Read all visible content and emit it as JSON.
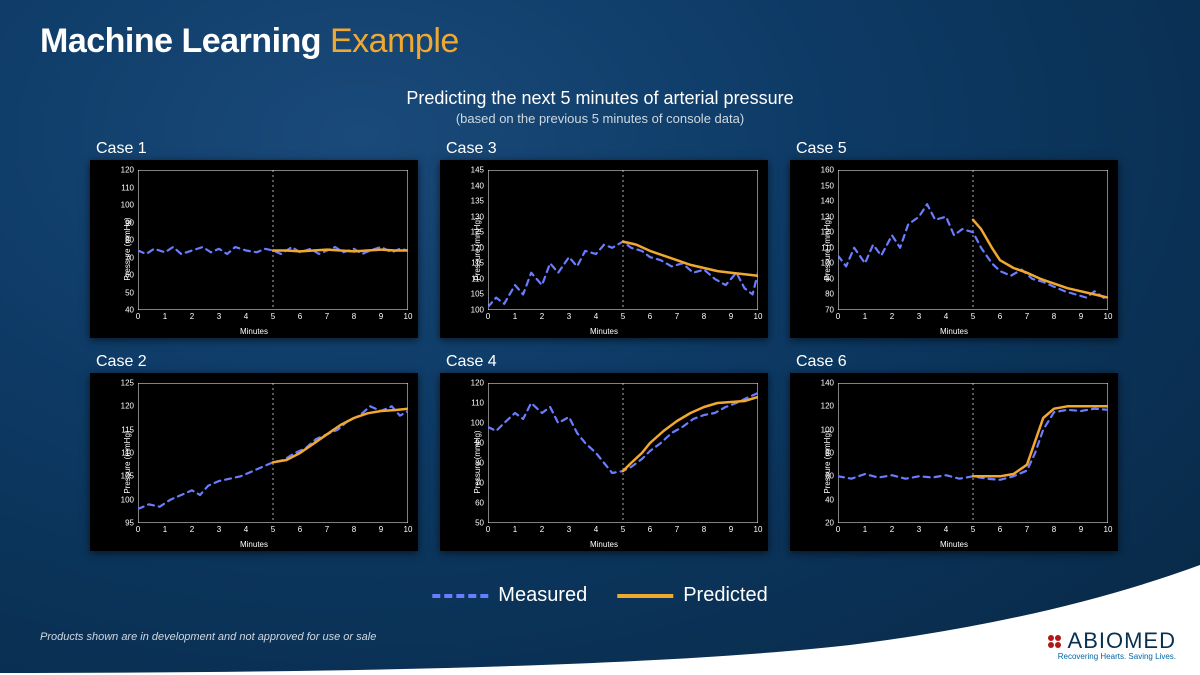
{
  "title": {
    "part1": "Machine Learning ",
    "part2": "Example"
  },
  "subtitle": {
    "line1": "Predicting the next 5 minutes of arterial pressure",
    "line2": "(based on the previous 5 minutes of console data)"
  },
  "legend": {
    "measured": {
      "label": "Measured",
      "color": "#6a7cff",
      "dash": "6,5",
      "width": 2.2
    },
    "predicted": {
      "label": "Predicted",
      "color": "#f0a830",
      "dash": "none",
      "width": 2.5
    }
  },
  "axis_labels": {
    "y": "Pressure (mmHg)",
    "x": "Minutes"
  },
  "common": {
    "xlim": [
      0,
      10
    ],
    "xtick_step": 1,
    "vline_x": 5,
    "tick_fontsize": 8,
    "background_color": "#000000",
    "frame_color": "#ffffff",
    "vline_color": "#dddddd",
    "vline_dash": "2,3"
  },
  "panels_order": [
    [
      "case1",
      "case3",
      "case5"
    ],
    [
      "case2",
      "case4",
      "case6"
    ]
  ],
  "panels": {
    "case1": {
      "label": "Case 1",
      "ylim": [
        40,
        120
      ],
      "ytick_step": 10,
      "measured": [
        [
          0,
          74
        ],
        [
          0.3,
          72
        ],
        [
          0.6,
          75
        ],
        [
          1,
          73
        ],
        [
          1.3,
          76
        ],
        [
          1.6,
          72
        ],
        [
          2,
          74
        ],
        [
          2.4,
          76
        ],
        [
          2.7,
          73
        ],
        [
          3,
          75
        ],
        [
          3.3,
          72
        ],
        [
          3.6,
          76
        ],
        [
          4,
          74
        ],
        [
          4.4,
          73
        ],
        [
          4.7,
          75
        ],
        [
          5,
          74
        ],
        [
          5.3,
          72
        ],
        [
          5.7,
          76
        ],
        [
          6,
          73
        ],
        [
          6.4,
          75
        ],
        [
          6.7,
          72
        ],
        [
          7,
          74
        ],
        [
          7.3,
          76
        ],
        [
          7.6,
          73
        ],
        [
          8,
          75
        ],
        [
          8.3,
          72
        ],
        [
          8.6,
          74
        ],
        [
          9,
          76
        ],
        [
          9.4,
          73
        ],
        [
          9.7,
          75
        ],
        [
          10,
          74
        ]
      ],
      "predicted": [
        [
          5,
          74
        ],
        [
          5.5,
          74
        ],
        [
          6,
          73.5
        ],
        [
          6.5,
          74
        ],
        [
          7,
          74.5
        ],
        [
          7.5,
          74
        ],
        [
          8,
          73.5
        ],
        [
          8.5,
          74
        ],
        [
          9,
          74.5
        ],
        [
          9.5,
          74
        ],
        [
          10,
          74
        ]
      ]
    },
    "case2": {
      "label": "Case 2",
      "ylim": [
        95,
        125
      ],
      "ytick_step": 5,
      "measured": [
        [
          0,
          98
        ],
        [
          0.4,
          99
        ],
        [
          0.8,
          98.5
        ],
        [
          1.2,
          100
        ],
        [
          1.6,
          101
        ],
        [
          2,
          102
        ],
        [
          2.3,
          101
        ],
        [
          2.6,
          103
        ],
        [
          3,
          104
        ],
        [
          3.4,
          104.5
        ],
        [
          3.8,
          105
        ],
        [
          4.2,
          106
        ],
        [
          4.6,
          107
        ],
        [
          5,
          108
        ],
        [
          5.4,
          108.5
        ],
        [
          5.8,
          110
        ],
        [
          6.2,
          111
        ],
        [
          6.6,
          113
        ],
        [
          7,
          114
        ],
        [
          7.4,
          115
        ],
        [
          7.8,
          117
        ],
        [
          8.2,
          118
        ],
        [
          8.6,
          120
        ],
        [
          9,
          119
        ],
        [
          9.4,
          120
        ],
        [
          9.7,
          118
        ],
        [
          10,
          119
        ]
      ],
      "predicted": [
        [
          5,
          108
        ],
        [
          5.5,
          108.5
        ],
        [
          6,
          110
        ],
        [
          6.5,
          112
        ],
        [
          7,
          114
        ],
        [
          7.5,
          116
        ],
        [
          8,
          117.5
        ],
        [
          8.5,
          118.5
        ],
        [
          9,
          119
        ],
        [
          9.5,
          119.2
        ],
        [
          10,
          119.5
        ]
      ]
    },
    "case3": {
      "label": "Case 3",
      "ylim": [
        100,
        145
      ],
      "ytick_step": 5,
      "measured": [
        [
          0,
          101
        ],
        [
          0.3,
          104
        ],
        [
          0.6,
          102
        ],
        [
          1,
          108
        ],
        [
          1.3,
          105
        ],
        [
          1.6,
          112
        ],
        [
          2,
          108
        ],
        [
          2.3,
          115
        ],
        [
          2.6,
          112
        ],
        [
          3,
          117
        ],
        [
          3.3,
          114
        ],
        [
          3.6,
          119
        ],
        [
          4,
          118
        ],
        [
          4.3,
          121
        ],
        [
          4.6,
          120
        ],
        [
          5,
          122
        ],
        [
          5.3,
          120
        ],
        [
          5.7,
          119
        ],
        [
          6,
          117
        ],
        [
          6.4,
          116
        ],
        [
          6.8,
          114
        ],
        [
          7.2,
          115
        ],
        [
          7.6,
          112
        ],
        [
          8,
          113
        ],
        [
          8.4,
          110
        ],
        [
          8.8,
          108
        ],
        [
          9.2,
          112
        ],
        [
          9.5,
          107
        ],
        [
          9.8,
          105
        ],
        [
          10,
          112
        ]
      ],
      "predicted": [
        [
          5,
          122
        ],
        [
          5.5,
          121
        ],
        [
          6,
          119
        ],
        [
          6.5,
          117.5
        ],
        [
          7,
          116
        ],
        [
          7.5,
          114.5
        ],
        [
          8,
          113.5
        ],
        [
          8.5,
          112.5
        ],
        [
          9,
          112
        ],
        [
          9.5,
          111.5
        ],
        [
          10,
          111
        ]
      ]
    },
    "case4": {
      "label": "Case 4",
      "ylim": [
        50,
        120
      ],
      "ytick_step": 10,
      "measured": [
        [
          0,
          98
        ],
        [
          0.3,
          96
        ],
        [
          0.6,
          100
        ],
        [
          1,
          105
        ],
        [
          1.3,
          102
        ],
        [
          1.6,
          110
        ],
        [
          2,
          105
        ],
        [
          2.3,
          108
        ],
        [
          2.6,
          100
        ],
        [
          3,
          103
        ],
        [
          3.3,
          95
        ],
        [
          3.6,
          90
        ],
        [
          4,
          85
        ],
        [
          4.3,
          80
        ],
        [
          4.6,
          75
        ],
        [
          5,
          76
        ],
        [
          5.3,
          78
        ],
        [
          5.7,
          82
        ],
        [
          6,
          86
        ],
        [
          6.4,
          90
        ],
        [
          6.8,
          95
        ],
        [
          7.2,
          98
        ],
        [
          7.6,
          102
        ],
        [
          8,
          104
        ],
        [
          8.4,
          105
        ],
        [
          8.8,
          108
        ],
        [
          9.2,
          110
        ],
        [
          9.5,
          112
        ],
        [
          10,
          115
        ]
      ],
      "predicted": [
        [
          5,
          76
        ],
        [
          5.3,
          80
        ],
        [
          5.7,
          85
        ],
        [
          6,
          90
        ],
        [
          6.5,
          96
        ],
        [
          7,
          101
        ],
        [
          7.5,
          105
        ],
        [
          8,
          108
        ],
        [
          8.5,
          110
        ],
        [
          9,
          110.5
        ],
        [
          9.5,
          111
        ],
        [
          10,
          113
        ]
      ]
    },
    "case5": {
      "label": "Case 5",
      "ylim": [
        70,
        160
      ],
      "ytick_step": 10,
      "measured": [
        [
          0,
          105
        ],
        [
          0.3,
          98
        ],
        [
          0.6,
          110
        ],
        [
          1,
          100
        ],
        [
          1.3,
          112
        ],
        [
          1.6,
          105
        ],
        [
          2,
          118
        ],
        [
          2.3,
          110
        ],
        [
          2.6,
          125
        ],
        [
          3,
          130
        ],
        [
          3.3,
          138
        ],
        [
          3.6,
          128
        ],
        [
          4,
          130
        ],
        [
          4.3,
          118
        ],
        [
          4.6,
          122
        ],
        [
          5,
          120
        ],
        [
          5.3,
          110
        ],
        [
          5.7,
          100
        ],
        [
          6,
          95
        ],
        [
          6.4,
          92
        ],
        [
          6.8,
          96
        ],
        [
          7.2,
          90
        ],
        [
          7.6,
          88
        ],
        [
          8,
          85
        ],
        [
          8.4,
          82
        ],
        [
          8.8,
          80
        ],
        [
          9.2,
          78
        ],
        [
          9.5,
          82
        ],
        [
          10,
          76
        ]
      ],
      "predicted": [
        [
          5,
          128
        ],
        [
          5.3,
          122
        ],
        [
          5.7,
          110
        ],
        [
          6,
          102
        ],
        [
          6.5,
          97
        ],
        [
          7,
          94
        ],
        [
          7.5,
          90
        ],
        [
          8,
          87
        ],
        [
          8.5,
          84
        ],
        [
          9,
          82
        ],
        [
          9.5,
          80
        ],
        [
          10,
          78
        ]
      ]
    },
    "case6": {
      "label": "Case 6",
      "ylim": [
        20,
        140
      ],
      "ytick_step": 20,
      "measured": [
        [
          0,
          60
        ],
        [
          0.5,
          58
        ],
        [
          1,
          62
        ],
        [
          1.5,
          59
        ],
        [
          2,
          61
        ],
        [
          2.5,
          58
        ],
        [
          3,
          60
        ],
        [
          3.5,
          59
        ],
        [
          4,
          61
        ],
        [
          4.5,
          58
        ],
        [
          5,
          60
        ],
        [
          5.5,
          58
        ],
        [
          6,
          57
        ],
        [
          6.5,
          60
        ],
        [
          7,
          65
        ],
        [
          7.3,
          80
        ],
        [
          7.6,
          100
        ],
        [
          8,
          115
        ],
        [
          8.5,
          117
        ],
        [
          9,
          116
        ],
        [
          9.5,
          118
        ],
        [
          10,
          117
        ]
      ],
      "predicted": [
        [
          5,
          60
        ],
        [
          5.5,
          60
        ],
        [
          6,
          60
        ],
        [
          6.5,
          62
        ],
        [
          7,
          70
        ],
        [
          7.3,
          90
        ],
        [
          7.6,
          110
        ],
        [
          8,
          118
        ],
        [
          8.5,
          120
        ],
        [
          9,
          120
        ],
        [
          9.5,
          120
        ],
        [
          10,
          120
        ]
      ]
    }
  },
  "disclaimer": "Products shown are in development and not approved for use or sale",
  "brand": {
    "name": "ABIOMED",
    "tagline": "Recovering Hearts. Saving Lives.",
    "color": "#083050",
    "accent": "#b01818"
  }
}
